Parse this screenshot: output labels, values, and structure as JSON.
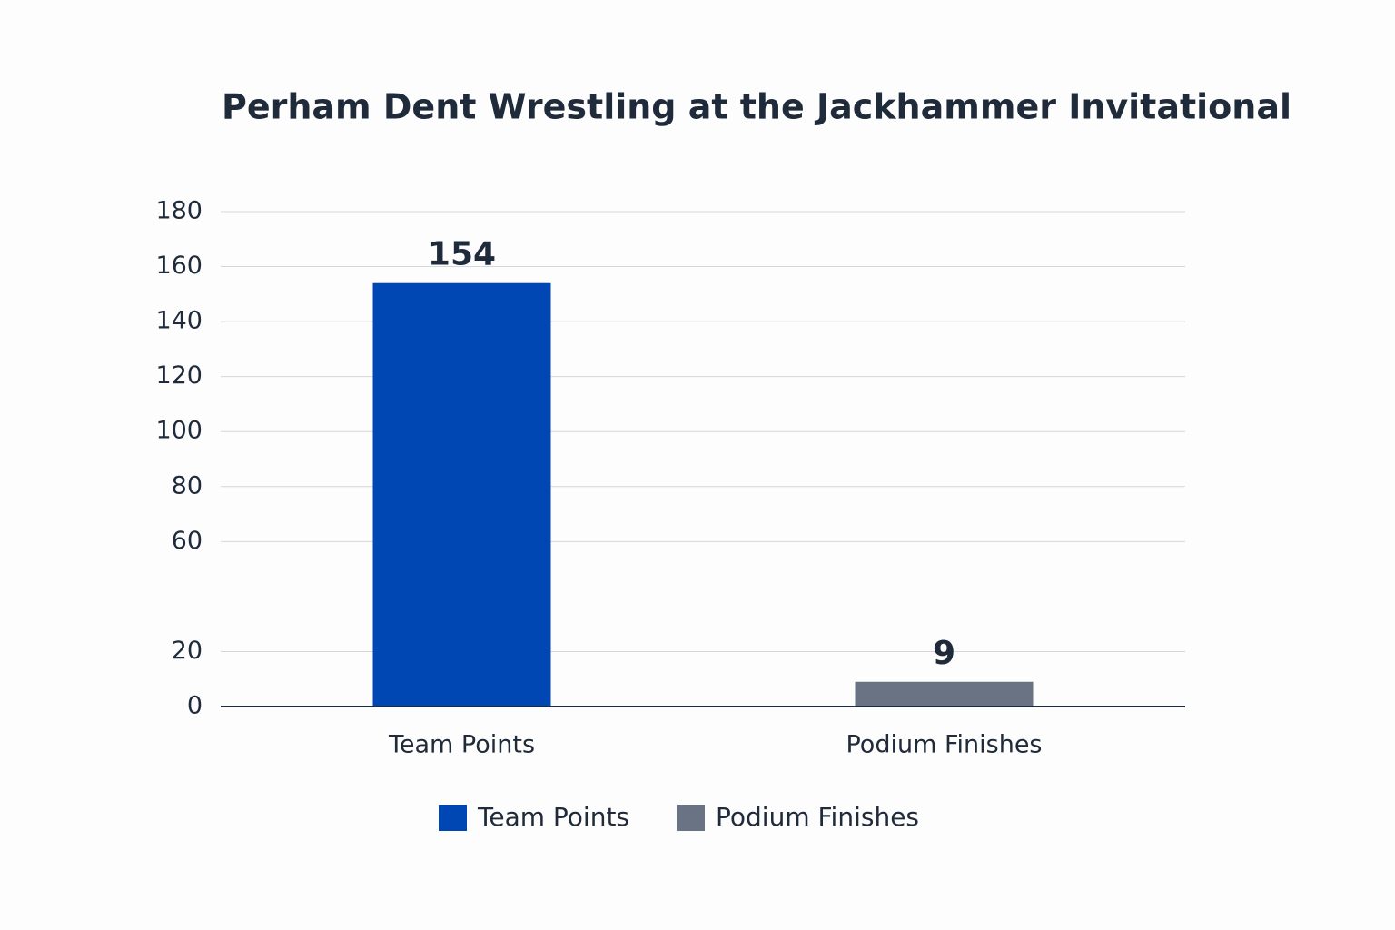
{
  "chart_data": {
    "type": "bar",
    "title": "Perham Dent Wrestling at the Jackhammer Invitational",
    "categories": [
      "Team Points",
      "Podium Finishes"
    ],
    "series": [
      {
        "name": "Team Points",
        "color": "#0047b3",
        "values": [
          154,
          null
        ]
      },
      {
        "name": "Podium Finishes",
        "color": "#697383",
        "values": [
          null,
          9
        ]
      }
    ],
    "ylim": [
      0,
      180
    ],
    "yticks": [
      0,
      20,
      60,
      80,
      100,
      120,
      140,
      160,
      180
    ],
    "grid": true,
    "legend": "bottom"
  }
}
